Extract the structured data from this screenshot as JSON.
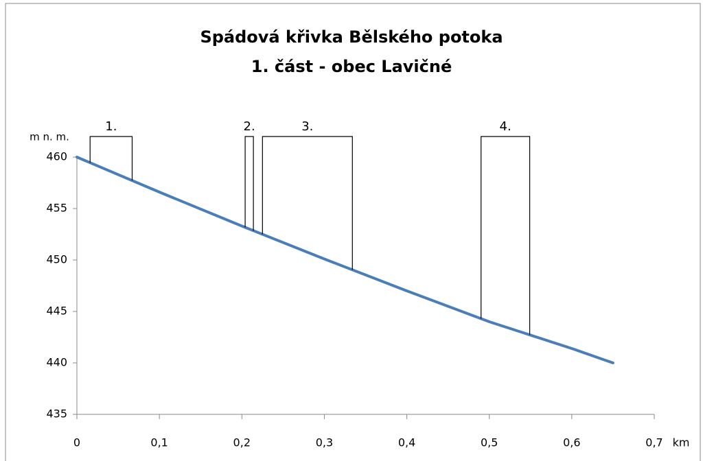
{
  "chart_data": {
    "type": "line",
    "title": [
      "Spádová křivka Bělského potoka",
      "1. část - obec Lavičné"
    ],
    "y_label": "m n. m.",
    "x_label": "km",
    "x": [
      0,
      0.1,
      0.2,
      0.3,
      0.4,
      0.5,
      0.6,
      0.65
    ],
    "series": [
      {
        "color": "#4a7ebb",
        "values": [
          460,
          456.6,
          453.3,
          450.1,
          447.0,
          444.0,
          441.4,
          440
        ]
      }
    ],
    "xlim": [
      0,
      0.7
    ],
    "xticks": [
      0,
      {
        "value": 0.1,
        "label": "0,1"
      },
      {
        "value": 0.2,
        "label": "0,2"
      },
      {
        "value": 0.3,
        "label": "0,3"
      },
      {
        "value": 0.4,
        "label": "0,4"
      },
      {
        "value": 0.5,
        "label": "0,5"
      },
      {
        "value": 0.6,
        "label": "0,6"
      },
      {
        "value": 0.7,
        "label": "0,7"
      }
    ],
    "ylim": [
      435,
      460
    ],
    "yticks": [
      435,
      440,
      445,
      450,
      455,
      460
    ],
    "annotations": [
      {
        "label": "1.",
        "start": 0.016,
        "end": 0.067,
        "top": 462
      },
      {
        "label": "2.",
        "start": 0.204,
        "end": 0.214,
        "top": 462
      },
      {
        "label": "3.",
        "start": 0.225,
        "end": 0.334,
        "top": 462
      },
      {
        "label": "4.",
        "start": 0.49,
        "end": 0.549,
        "top": 462
      }
    ]
  }
}
